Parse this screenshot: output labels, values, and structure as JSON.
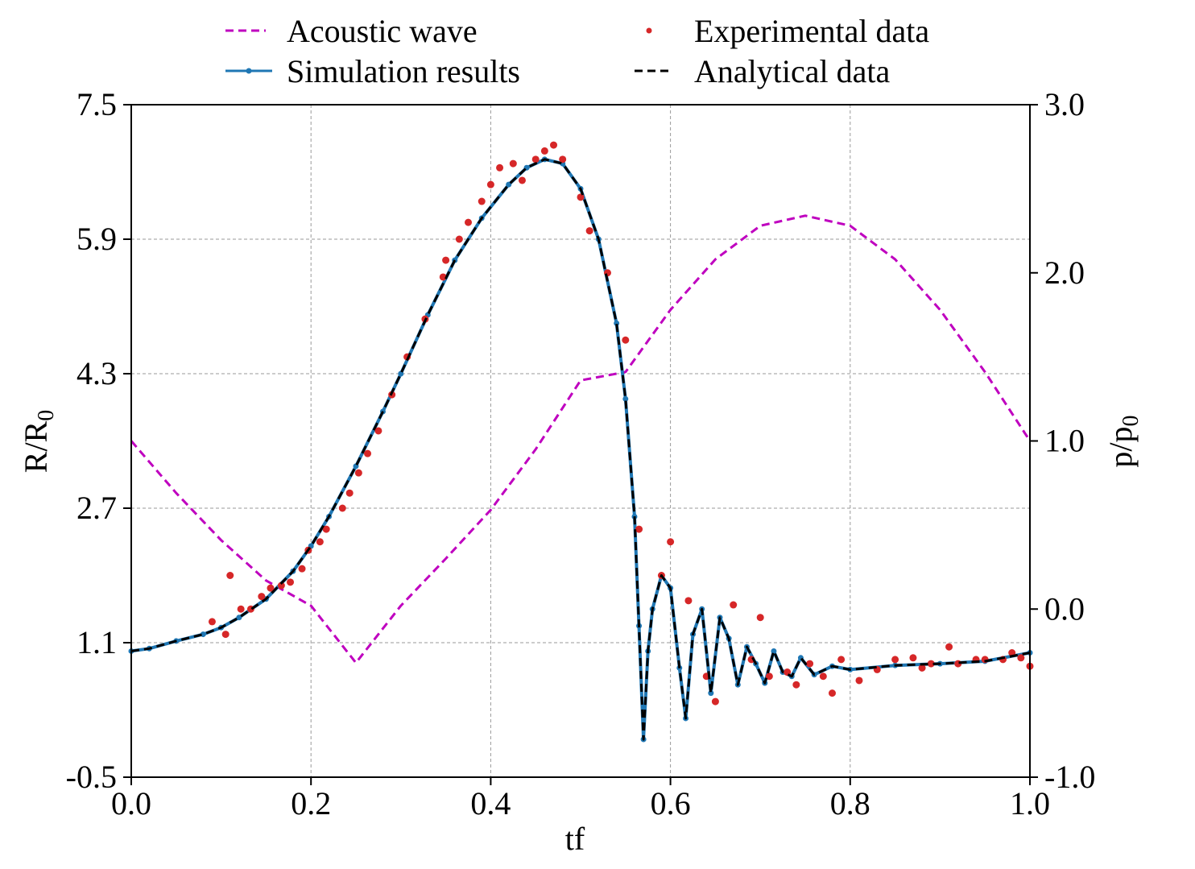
{
  "chart_data": {
    "type": "line",
    "xlabel": "tf",
    "ylabel_left": "R/R",
    "ylabel_left_sub": "0",
    "ylabel_right": "p/p",
    "ylabel_right_sub": "0",
    "xlim": [
      0.0,
      1.0
    ],
    "ylim_left": [
      -0.5,
      7.5
    ],
    "ylim_right": [
      -1.0,
      3.0
    ],
    "xticks": [
      "0.0",
      "0.2",
      "0.4",
      "0.6",
      "0.8",
      "1.0"
    ],
    "yticks_left": [
      "-0.5",
      "1.1",
      "2.7",
      "4.3",
      "5.9",
      "7.5"
    ],
    "yticks_right": [
      "-1.0",
      "0.0",
      "1.0",
      "2.0",
      "3.0"
    ],
    "grid": true,
    "legend_position": "top-center",
    "series": [
      {
        "name": "Acoustic wave",
        "axis": "right",
        "style": "dashed",
        "color": "#bf00bf",
        "x": [
          0.0,
          0.05,
          0.1,
          0.15,
          0.2,
          0.25,
          0.3,
          0.35,
          0.4,
          0.45,
          0.5,
          0.55,
          0.6,
          0.65,
          0.7,
          0.75,
          0.8,
          0.85,
          0.9,
          0.95,
          1.0
        ],
        "y": [
          1.0,
          0.69,
          0.41,
          0.17,
          0.02,
          -0.32,
          0.02,
          0.3,
          0.59,
          0.95,
          1.36,
          1.41,
          1.78,
          2.08,
          2.28,
          2.34,
          2.28,
          2.08,
          1.78,
          1.41,
          1.0
        ]
      },
      {
        "name": "Simulation results",
        "axis": "left",
        "style": "solid-marker",
        "color": "#1f77b4",
        "x": [
          0.0,
          0.02,
          0.05,
          0.08,
          0.1,
          0.12,
          0.15,
          0.18,
          0.2,
          0.22,
          0.25,
          0.28,
          0.3,
          0.33,
          0.36,
          0.39,
          0.42,
          0.44,
          0.46,
          0.48,
          0.5,
          0.52,
          0.54,
          0.55,
          0.56,
          0.565,
          0.57,
          0.575,
          0.58,
          0.59,
          0.6,
          0.61,
          0.617,
          0.625,
          0.635,
          0.645,
          0.655,
          0.665,
          0.675,
          0.685,
          0.695,
          0.705,
          0.715,
          0.725,
          0.735,
          0.745,
          0.76,
          0.78,
          0.8,
          0.85,
          0.9,
          0.95,
          1.0
        ],
        "y": [
          1.0,
          1.03,
          1.12,
          1.2,
          1.28,
          1.4,
          1.62,
          1.95,
          2.25,
          2.6,
          3.2,
          3.85,
          4.3,
          5.0,
          5.65,
          6.15,
          6.55,
          6.75,
          6.85,
          6.8,
          6.5,
          5.9,
          4.9,
          4.0,
          2.6,
          1.3,
          -0.05,
          1.0,
          1.5,
          1.9,
          1.75,
          0.8,
          0.2,
          1.2,
          1.5,
          0.5,
          1.4,
          1.15,
          0.6,
          1.05,
          0.85,
          0.62,
          1.0,
          0.75,
          0.7,
          0.92,
          0.72,
          0.82,
          0.78,
          0.83,
          0.85,
          0.88,
          0.98
        ]
      },
      {
        "name": "Experimental data",
        "axis": "left",
        "style": "scatter",
        "color": "#d62728",
        "x": [
          0.09,
          0.105,
          0.11,
          0.122,
          0.133,
          0.145,
          0.155,
          0.167,
          0.177,
          0.19,
          0.197,
          0.21,
          0.217,
          0.235,
          0.243,
          0.253,
          0.263,
          0.275,
          0.29,
          0.307,
          0.327,
          0.347,
          0.35,
          0.365,
          0.375,
          0.39,
          0.4,
          0.41,
          0.425,
          0.435,
          0.45,
          0.46,
          0.47,
          0.48,
          0.5,
          0.51,
          0.53,
          0.55,
          0.565,
          0.59,
          0.6,
          0.62,
          0.64,
          0.65,
          0.67,
          0.69,
          0.7,
          0.71,
          0.73,
          0.74,
          0.755,
          0.77,
          0.78,
          0.79,
          0.81,
          0.83,
          0.85,
          0.87,
          0.88,
          0.89,
          0.91,
          0.92,
          0.94,
          0.95,
          0.97,
          0.98,
          0.99,
          1.0
        ],
        "y": [
          1.35,
          1.2,
          1.9,
          1.5,
          1.5,
          1.65,
          1.75,
          1.78,
          1.82,
          1.98,
          2.2,
          2.3,
          2.45,
          2.7,
          2.88,
          3.12,
          3.35,
          3.62,
          4.05,
          4.5,
          4.95,
          5.45,
          5.65,
          5.9,
          6.1,
          6.35,
          6.55,
          6.75,
          6.8,
          6.6,
          6.85,
          6.95,
          7.02,
          6.85,
          6.4,
          6.0,
          5.5,
          4.7,
          2.45,
          1.9,
          2.3,
          1.6,
          0.7,
          0.4,
          1.55,
          0.9,
          1.4,
          0.7,
          0.75,
          0.6,
          0.85,
          0.7,
          0.5,
          0.9,
          0.65,
          0.78,
          0.9,
          0.92,
          0.8,
          0.85,
          1.05,
          0.85,
          0.9,
          0.9,
          0.9,
          0.98,
          0.92,
          0.82
        ]
      },
      {
        "name": "Analytical data",
        "axis": "left",
        "style": "dashed",
        "color": "#000000",
        "x": [
          0.0,
          0.02,
          0.05,
          0.08,
          0.1,
          0.12,
          0.15,
          0.18,
          0.2,
          0.22,
          0.25,
          0.28,
          0.3,
          0.33,
          0.36,
          0.39,
          0.42,
          0.44,
          0.46,
          0.48,
          0.5,
          0.52,
          0.54,
          0.55,
          0.56,
          0.565,
          0.57,
          0.575,
          0.58,
          0.59,
          0.6,
          0.61,
          0.617,
          0.625,
          0.635,
          0.645,
          0.655,
          0.665,
          0.675,
          0.685,
          0.695,
          0.705,
          0.715,
          0.725,
          0.735,
          0.745,
          0.76,
          0.78,
          0.8,
          0.85,
          0.9,
          0.95,
          1.0
        ],
        "y": [
          1.0,
          1.03,
          1.12,
          1.2,
          1.28,
          1.4,
          1.62,
          1.95,
          2.25,
          2.6,
          3.2,
          3.85,
          4.3,
          5.0,
          5.65,
          6.15,
          6.55,
          6.75,
          6.85,
          6.8,
          6.5,
          5.9,
          4.9,
          4.0,
          2.6,
          1.3,
          -0.05,
          1.0,
          1.5,
          1.9,
          1.75,
          0.8,
          0.2,
          1.2,
          1.5,
          0.5,
          1.4,
          1.15,
          0.6,
          1.05,
          0.85,
          0.62,
          1.0,
          0.75,
          0.7,
          0.92,
          0.72,
          0.82,
          0.78,
          0.83,
          0.85,
          0.88,
          0.98
        ]
      }
    ]
  }
}
